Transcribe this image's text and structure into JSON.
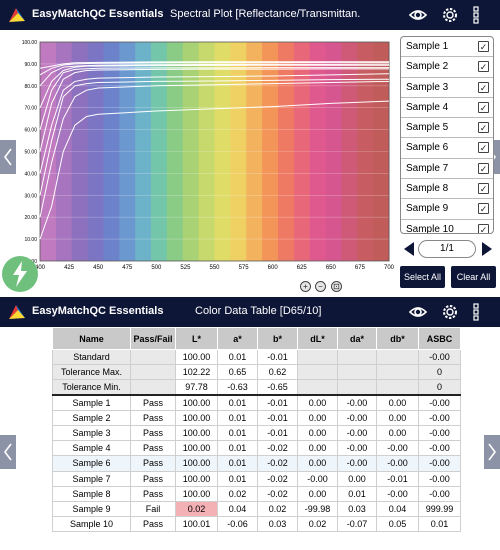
{
  "app": {
    "title": "EasyMatchQC Essentials"
  },
  "spectral": {
    "screen_title": "Spectral Plot [Reflectance/Transmittan...",
    "samples": [
      {
        "label": "Sample 1",
        "checked": true
      },
      {
        "label": "Sample 2",
        "checked": true
      },
      {
        "label": "Sample 3",
        "checked": true
      },
      {
        "label": "Sample 4",
        "checked": true
      },
      {
        "label": "Sample 5",
        "checked": true
      },
      {
        "label": "Sample 6",
        "checked": true
      },
      {
        "label": "Sample 7",
        "checked": true
      },
      {
        "label": "Sample 8",
        "checked": true
      },
      {
        "label": "Sample 9",
        "checked": true
      },
      {
        "label": "Sample 10",
        "checked": true
      }
    ],
    "page": "1/1",
    "select_all": "Select All",
    "clear_all": "Clear All",
    "zoom": {
      "in": "+",
      "out": "−",
      "reset": "⊡"
    }
  },
  "chart_data": {
    "type": "line",
    "xlabel": "WaveLength(nm)",
    "ylabel": "",
    "xlim": [
      400,
      700
    ],
    "ylim": [
      0,
      100
    ],
    "x_ticks": [
      400,
      425,
      450,
      475,
      500,
      525,
      550,
      575,
      600,
      625,
      650,
      675,
      700
    ],
    "y_ticks": [
      "0.00",
      "10.00",
      "20.00",
      "30.00",
      "40.00",
      "50.00",
      "60.00",
      "70.00",
      "80.00",
      "90.00",
      "100.00"
    ],
    "x": [
      400,
      410,
      420,
      430,
      440,
      450,
      500,
      550,
      600,
      650,
      700
    ],
    "series": [
      {
        "values": [
          88,
          89,
          90,
          90.5,
          90.6,
          90.7,
          90.9,
          91,
          91,
          91,
          91
        ]
      },
      {
        "values": [
          85,
          88,
          89.5,
          90,
          90.2,
          90.3,
          90.5,
          90.6,
          90.6,
          90.7,
          90.7
        ]
      },
      {
        "values": [
          80,
          86,
          88.5,
          89,
          89.2,
          89.4,
          89.6,
          89.7,
          89.8,
          89.8,
          89.9
        ]
      },
      {
        "values": [
          70,
          82,
          87,
          88.5,
          89,
          89,
          89.2,
          89.3,
          89.4,
          89.4,
          89.4
        ]
      },
      {
        "values": [
          60,
          78,
          86,
          87.5,
          87.8,
          88,
          88.2,
          88.2,
          88.3,
          88.3,
          88.3
        ]
      },
      {
        "values": [
          50,
          72,
          83,
          86,
          87,
          87.2,
          87.5,
          87.6,
          87.6,
          87.7,
          87.7
        ]
      },
      {
        "values": [
          40,
          62,
          78,
          82,
          83,
          83.5,
          84,
          84.2,
          84.5,
          85,
          85.5
        ]
      },
      {
        "values": [
          30,
          55,
          75,
          80,
          81,
          81.5,
          82,
          82.2,
          82.5,
          82.8,
          83
        ]
      },
      {
        "values": [
          20,
          45,
          65,
          75,
          78,
          79,
          80,
          80.5,
          81,
          81.5,
          82
        ]
      },
      {
        "values": [
          10,
          25,
          50,
          62,
          66,
          67,
          68.5,
          69.5,
          70.5,
          72,
          73
        ]
      }
    ]
  },
  "color_table": {
    "screen_title": "Color Data Table [D65/10]",
    "headers": [
      "Name",
      "Pass/Fail",
      "L*",
      "a*",
      "b*",
      "dL*",
      "da*",
      "db*",
      "ASBC"
    ],
    "reference_rows": [
      [
        "Standard",
        "",
        "100.00",
        "0.01",
        "-0.01",
        "",
        "",
        "",
        "-0.00"
      ],
      [
        "Tolerance Max.",
        "",
        "102.22",
        "0.65",
        "0.62",
        "",
        "",
        "",
        "0"
      ],
      [
        "Tolerance Min.",
        "",
        "97.78",
        "-0.63",
        "-0.65",
        "",
        "",
        "",
        "0"
      ]
    ],
    "sample_rows": [
      [
        "Sample 1",
        "Pass",
        "100.00",
        "0.01",
        "-0.01",
        "0.00",
        "-0.00",
        "0.00",
        "-0.00"
      ],
      [
        "Sample 2",
        "Pass",
        "100.00",
        "0.01",
        "-0.01",
        "0.00",
        "-0.00",
        "0.00",
        "-0.00"
      ],
      [
        "Sample 3",
        "Pass",
        "100.00",
        "0.01",
        "-0.01",
        "0.00",
        "-0.00",
        "0.00",
        "-0.00"
      ],
      [
        "Sample 4",
        "Pass",
        "100.00",
        "0.01",
        "-0.02",
        "0.00",
        "-0.00",
        "-0.00",
        "-0.00"
      ],
      [
        "Sample 6",
        "Pass",
        "100.00",
        "0.01",
        "-0.02",
        "0.00",
        "-0.00",
        "-0.00",
        "-0.00"
      ],
      [
        "Sample 7",
        "Pass",
        "100.00",
        "0.01",
        "-0.02",
        "-0.00",
        "0.00",
        "-0.01",
        "-0.00"
      ],
      [
        "Sample 8",
        "Pass",
        "100.00",
        "0.02",
        "-0.02",
        "0.00",
        "0.01",
        "-0.00",
        "-0.00"
      ],
      [
        "Sample 9",
        "Fail",
        "0.02",
        "0.04",
        "0.02",
        "-99.98",
        "0.03",
        "0.04",
        "999.99"
      ],
      [
        "Sample 10",
        "Pass",
        "100.01",
        "-0.06",
        "0.03",
        "0.02",
        "-0.07",
        "0.05",
        "0.01"
      ]
    ]
  },
  "colors": {
    "appbar": "#0e1638",
    "pass": "#1a9a2a",
    "fail": "#e23b3b",
    "fail_cell": "#f4b1b5",
    "table_header": "#c9c9c9"
  },
  "icons": [
    "app-logo-icon",
    "eye-icon",
    "gear-icon",
    "more-vert-icon",
    "chevron-left-icon",
    "chevron-right-icon",
    "flash-icon",
    "check-icon",
    "zoom-in-icon",
    "zoom-out-icon",
    "zoom-reset-icon"
  ]
}
